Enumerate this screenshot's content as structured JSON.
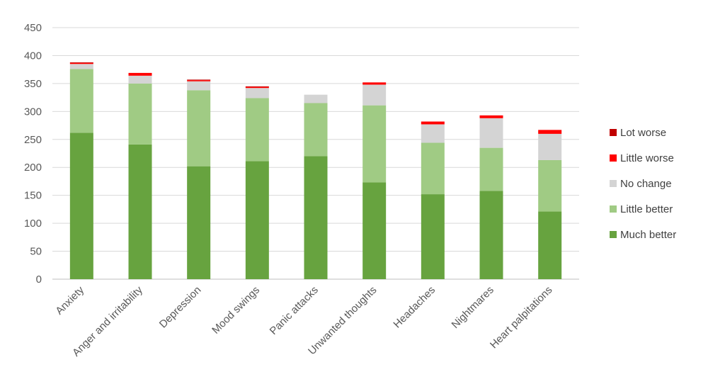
{
  "chart_data": {
    "type": "bar",
    "stacked": true,
    "categories": [
      "Anxiety",
      "Anger and irritability",
      "Depression",
      "Mood swings",
      "Panic attacks",
      "Unwanted thoughts",
      "Headaches",
      "Nightmares",
      "Heart palpitations"
    ],
    "series": [
      {
        "name": "Much better",
        "color": "#67a33f",
        "values": [
          262,
          241,
          202,
          211,
          220,
          173,
          152,
          158,
          121
        ]
      },
      {
        "name": "Little better",
        "color": "#a0cb84",
        "values": [
          114,
          109,
          136,
          113,
          95,
          138,
          92,
          77,
          92
        ]
      },
      {
        "name": "No change",
        "color": "#d4d4d4",
        "values": [
          9,
          14,
          16,
          18,
          15,
          37,
          33,
          53,
          47
        ]
      },
      {
        "name": "Little worse",
        "color": "#ff0000",
        "values": [
          2,
          5,
          2,
          2,
          0,
          4,
          5,
          5,
          7
        ]
      },
      {
        "name": "Lot worse",
        "color": "#c00000",
        "values": [
          1,
          0,
          1,
          1,
          0,
          0,
          0,
          0,
          0
        ]
      }
    ],
    "yticks": [
      0,
      50,
      100,
      150,
      200,
      250,
      300,
      350,
      400,
      450
    ],
    "ylim": [
      0,
      450
    ],
    "grid": true,
    "legend_position": "right",
    "legend_order": [
      "Lot worse",
      "Little worse",
      "No change",
      "Little better",
      "Much better"
    ]
  }
}
